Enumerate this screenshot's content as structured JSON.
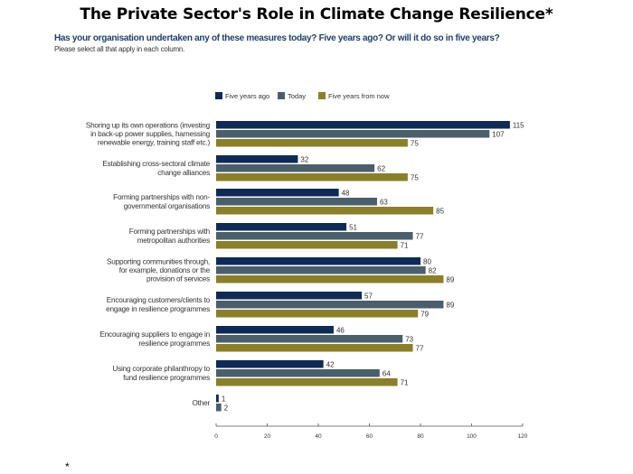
{
  "page": {
    "title": "The Private Sector's Role in Climate Change Resilience*",
    "footnote": "*"
  },
  "chart_data": {
    "type": "bar",
    "orientation": "horizontal",
    "title": "The Private Sector's Role in Climate Change Resilience*",
    "subtitle": "Has your organisation undertaken any of these measures today? Five years ago? Or will it do so in five years?",
    "note": "Please select all that apply in each column.",
    "xlabel": "",
    "ylabel": "",
    "xlim": [
      0,
      120
    ],
    "xticks": [
      0,
      20,
      40,
      60,
      80,
      100,
      120
    ],
    "grid": false,
    "legend_position": "top",
    "categories": [
      [
        "Shoring up its own operations (investing",
        "in back-up power supplies, harnessing",
        "renewable energy, training staff etc.)"
      ],
      [
        "Establishing cross-sectoral climate",
        "change alliances"
      ],
      [
        "Forming partnerships with non-",
        "governmental organisations"
      ],
      [
        "Forming partnerships with",
        "metropolitan authorities"
      ],
      [
        "Supporting communities through,",
        "for example, donations or the",
        "provision of services"
      ],
      [
        "Encouraging customers/clients to",
        "engage in resilience programmes"
      ],
      [
        "Encouraging suppliers to engage in",
        "resilience programmes"
      ],
      [
        "Using corporate philanthropy to",
        "fund resilience programmes"
      ],
      [
        "Other"
      ]
    ],
    "series": [
      {
        "name": "Five years ago",
        "color": "#0f2a55",
        "values": [
          115,
          32,
          48,
          51,
          80,
          57,
          46,
          42,
          1
        ]
      },
      {
        "name": "Today",
        "color": "#4a5f6b",
        "values": [
          107,
          62,
          63,
          77,
          82,
          89,
          73,
          64,
          2
        ]
      },
      {
        "name": "Five years from now",
        "color": "#8a7f2a",
        "values": [
          75,
          75,
          85,
          71,
          89,
          79,
          77,
          71,
          null
        ]
      }
    ]
  }
}
